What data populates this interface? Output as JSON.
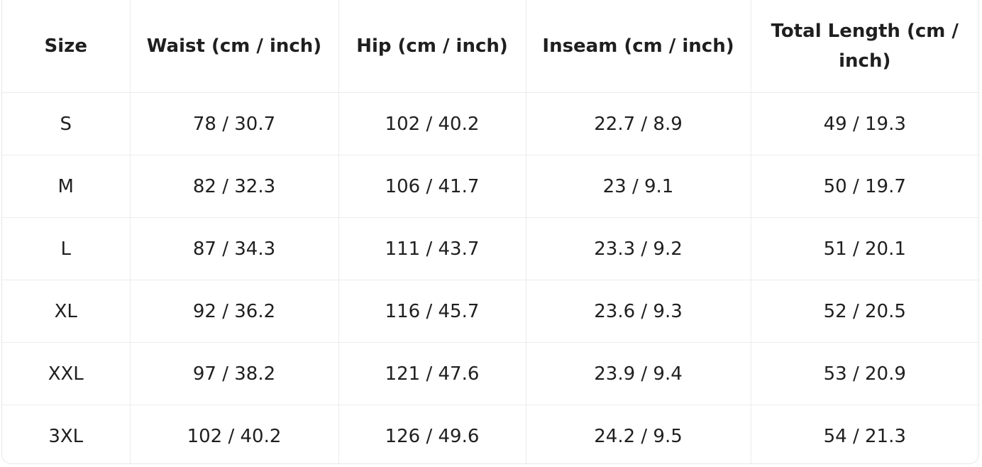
{
  "table": {
    "headers": [
      "Size",
      "Waist (cm / inch)",
      "Hip (cm / inch)",
      "Inseam (cm / inch)",
      "Total Length (cm / inch)"
    ],
    "rows": [
      [
        "S",
        "78 / 30.7",
        "102 / 40.2",
        "22.7 / 8.9",
        "49 / 19.3"
      ],
      [
        "M",
        "82 / 32.3",
        "106 / 41.7",
        "23 / 9.1",
        "50 / 19.7"
      ],
      [
        "L",
        "87 / 34.3",
        "111 / 43.7",
        "23.3 / 9.2",
        "51 / 20.1"
      ],
      [
        "XL",
        "92 / 36.2",
        "116 / 45.7",
        "23.6 / 9.3",
        "52 / 20.5"
      ],
      [
        "XXL",
        "97 / 38.2",
        "121 / 47.6",
        "23.9 / 9.4",
        "53 / 20.9"
      ],
      [
        "3XL",
        "102 / 40.2",
        "126 / 49.6",
        "24.2 / 9.5",
        "54 / 21.3"
      ]
    ]
  }
}
